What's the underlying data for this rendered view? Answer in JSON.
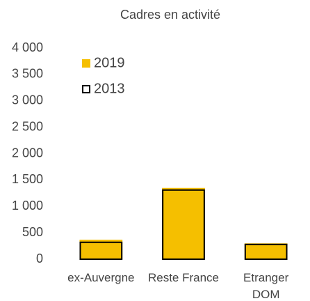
{
  "chart_data": {
    "type": "bar",
    "title": "Cadres en activité",
    "categories": [
      "ex-Auvergne",
      "Reste France",
      "Etranger DOM"
    ],
    "series": [
      {
        "name": "2019",
        "color": "#f5bf00",
        "values": [
          370,
          1350,
          300
        ]
      },
      {
        "name": "2013",
        "color": "#000000",
        "values": [
          320,
          1310,
          280
        ]
      }
    ],
    "ylim": [
      0,
      4000
    ],
    "yticks": [
      0,
      500,
      {
        "value": 1000,
        "label": "1 000"
      },
      {
        "value": 1500,
        "label": "1 500"
      },
      {
        "value": 2000,
        "label": "2 000"
      },
      {
        "value": 2500,
        "label": "2 500"
      },
      {
        "value": 3000,
        "label": "3 000"
      },
      {
        "value": 3500,
        "label": "3 500"
      },
      {
        "value": 4000,
        "label": "4 000"
      }
    ],
    "legend": "upper left",
    "grid": false
  }
}
